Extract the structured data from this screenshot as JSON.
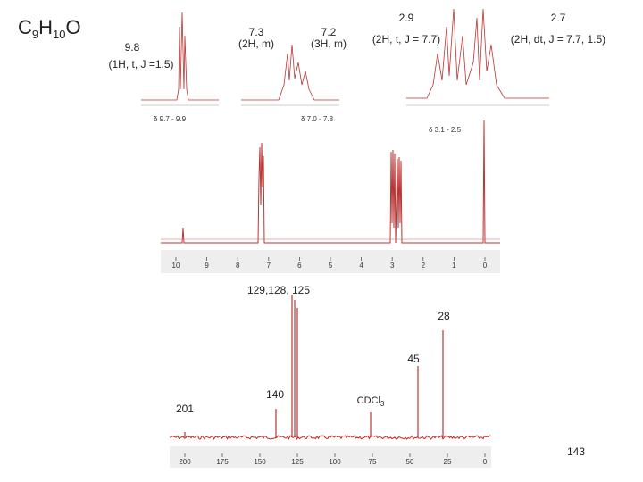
{
  "formula": [
    "C",
    "9",
    "H",
    "10",
    "O"
  ],
  "h_nmr": {
    "peaks": [
      {
        "shift": "9.8",
        "detail": "(1H, t, J =1.5)"
      },
      {
        "shift": "7.3",
        "detail": "(2H, m)"
      },
      {
        "shift": "7.2",
        "detail": "(3H, m)"
      },
      {
        "shift": "2.9",
        "detail": "(2H, t, J = 7.7)"
      },
      {
        "shift": "2.7",
        "detail": "(2H, dt, J = 7.7, 1.5)"
      }
    ],
    "ranges": [
      "δ 9.7 - 9.9",
      "δ 7.0 - 7.8",
      "δ 3.1 - 2.5"
    ],
    "axis_labels": [
      "10",
      "9",
      "8",
      "7",
      "6",
      "5",
      "4",
      "3",
      "2",
      "1",
      "0"
    ]
  },
  "c_nmr": {
    "peak_labels": [
      "129,128, 125",
      "28",
      "45",
      "201",
      "140"
    ],
    "solvent": [
      "CDCl",
      "3"
    ],
    "axis_labels": [
      "200",
      "175",
      "150",
      "125",
      "100",
      "75",
      "50",
      "25",
      "0"
    ]
  },
  "page_number": "143"
}
